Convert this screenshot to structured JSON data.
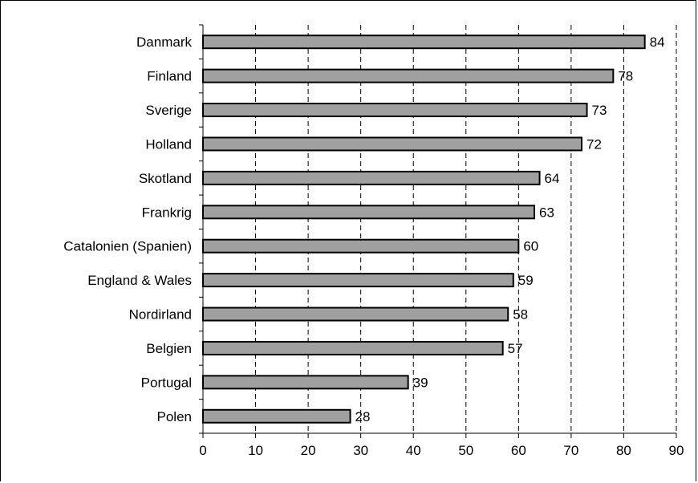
{
  "chart_data": {
    "type": "bar",
    "orientation": "horizontal",
    "categories": [
      "Danmark",
      "Finland",
      "Sverige",
      "Holland",
      "Skotland",
      "Frankrig",
      "Catalonien (Spanien)",
      "England & Wales",
      "Nordirland",
      "Belgien",
      "Portugal",
      "Polen"
    ],
    "values": [
      84,
      78,
      73,
      72,
      64,
      63,
      60,
      59,
      58,
      57,
      39,
      28
    ],
    "value_labels": [
      "84",
      "78",
      "73",
      "72",
      "64",
      "63",
      "60",
      "59",
      "58",
      "57",
      "39",
      "28"
    ],
    "xticks": [
      "0",
      "10",
      "20",
      "30",
      "40",
      "50",
      "60",
      "70",
      "80",
      "90"
    ],
    "xlim": [
      0,
      90
    ],
    "grid": "vertical dashed",
    "bar_color": "#a0a0a0",
    "bar_edge_color": "#000000",
    "title": "",
    "xlabel": "",
    "ylabel": ""
  }
}
